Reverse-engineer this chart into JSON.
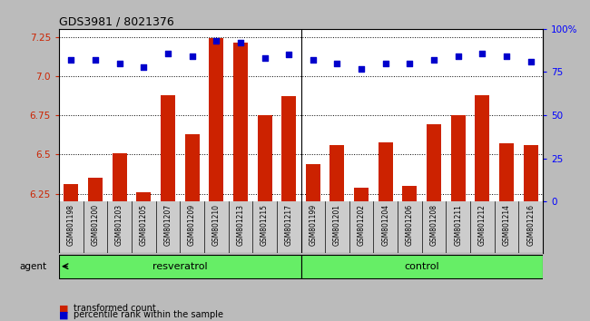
{
  "title": "GDS3981 / 8021376",
  "samples": [
    "GSM801198",
    "GSM801200",
    "GSM801203",
    "GSM801205",
    "GSM801207",
    "GSM801209",
    "GSM801210",
    "GSM801213",
    "GSM801215",
    "GSM801217",
    "GSM801199",
    "GSM801201",
    "GSM801202",
    "GSM801204",
    "GSM801206",
    "GSM801208",
    "GSM801211",
    "GSM801212",
    "GSM801214",
    "GSM801216"
  ],
  "transformed_count": [
    6.31,
    6.35,
    6.51,
    6.26,
    6.88,
    6.63,
    7.24,
    7.21,
    6.75,
    6.87,
    6.44,
    6.56,
    6.29,
    6.58,
    6.3,
    6.69,
    6.75,
    6.88,
    6.57,
    6.56
  ],
  "percentile_rank": [
    82,
    82,
    80,
    78,
    86,
    84,
    93,
    92,
    83,
    85,
    82,
    80,
    77,
    80,
    80,
    82,
    84,
    86,
    84,
    81
  ],
  "ylim_left": [
    6.2,
    7.3
  ],
  "ylim_right": [
    0,
    100
  ],
  "yticks_left": [
    6.25,
    6.5,
    6.75,
    7.0,
    7.25
  ],
  "yticks_right": [
    0,
    25,
    50,
    75,
    100
  ],
  "groups": [
    {
      "display": "resveratrol",
      "start": 0,
      "end": 9
    },
    {
      "display": "control",
      "start": 10,
      "end": 19
    }
  ],
  "bar_color": "#CC2200",
  "dot_color": "#0000CC",
  "group_color": "#66EE66",
  "background_color": "#BBBBBB",
  "plot_bg_color": "#FFFFFF",
  "ticklabel_bg_color": "#CCCCCC",
  "bar_width": 0.6,
  "agent_label": "agent",
  "legend_bar_label": "transformed count",
  "legend_dot_label": "percentile rank within the sample",
  "n_resveratrol": 10,
  "n_control": 10
}
